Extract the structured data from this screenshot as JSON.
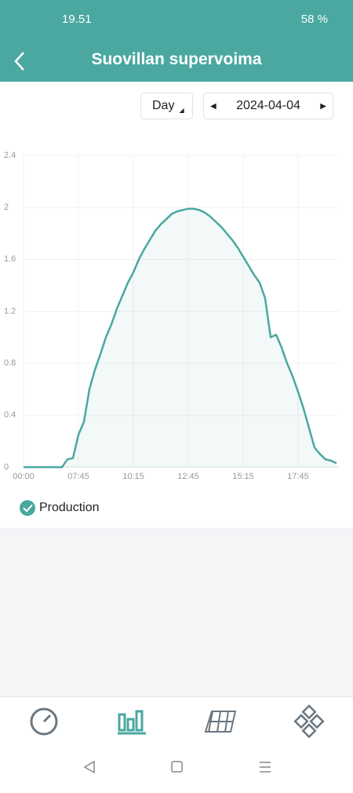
{
  "status_bar": {
    "time": "19.51",
    "battery": "58 %"
  },
  "header": {
    "title": "Suovillan supervoima"
  },
  "controls": {
    "period": "Day",
    "date": "2024-04-04"
  },
  "chart_data": {
    "type": "line",
    "categories": [
      "00:00",
      null,
      null,
      null,
      null,
      null,
      null,
      null,
      null,
      null,
      "07:45",
      null,
      null,
      null,
      null,
      null,
      null,
      null,
      null,
      null,
      "10:15",
      null,
      null,
      null,
      null,
      null,
      null,
      null,
      null,
      null,
      "12:45",
      null,
      null,
      null,
      null,
      null,
      null,
      null,
      null,
      null,
      "15:15",
      null,
      null,
      null,
      null,
      null,
      null,
      null,
      null,
      null,
      "17:45",
      null,
      null,
      null,
      null,
      null,
      null,
      null
    ],
    "series": [
      {
        "name": "Production",
        "color": "#4aa8a0",
        "values": [
          0,
          0,
          0,
          0,
          0,
          0,
          0,
          0,
          0.06,
          0.07,
          0.25,
          0.35,
          0.6,
          0.75,
          0.87,
          1.0,
          1.1,
          1.22,
          1.32,
          1.42,
          1.5,
          1.6,
          1.68,
          1.75,
          1.82,
          1.87,
          1.91,
          1.95,
          1.97,
          1.98,
          1.99,
          1.99,
          1.98,
          1.96,
          1.93,
          1.89,
          1.85,
          1.8,
          1.75,
          1.69,
          1.62,
          1.55,
          1.48,
          1.42,
          1.3,
          1.0,
          1.02,
          0.92,
          0.8,
          0.7,
          0.58,
          0.45,
          0.3,
          0.15,
          0.1,
          0.06,
          0.05,
          0.03
        ]
      }
    ],
    "ylim": [
      0,
      2.4
    ],
    "yticks": [
      0,
      0.4,
      0.8,
      1.2,
      1.6,
      2,
      2.4
    ],
    "grid": true
  }
}
